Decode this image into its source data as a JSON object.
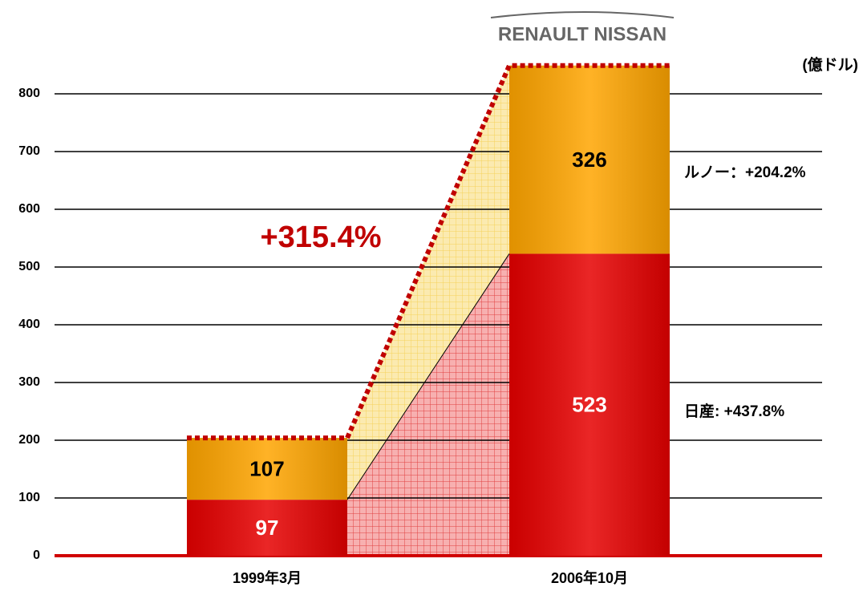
{
  "chart_data": {
    "type": "bar",
    "stacked": true,
    "logo": "RENAULT NISSAN",
    "unit_label": "(億ドル)",
    "categories": [
      "1999年3月",
      "2006年10月"
    ],
    "series": [
      {
        "name": "日産",
        "color": "#e60000",
        "values": [
          97,
          523
        ]
      },
      {
        "name": "ルノー",
        "color": "#ffa500",
        "values": [
          107,
          326
        ]
      }
    ],
    "annotations": [
      "+315.4%",
      "ルノー：+204.2%",
      "日産:  +437.8%"
    ],
    "ylim": [
      0,
      800
    ],
    "yticks": [
      0,
      100,
      200,
      300,
      400,
      500,
      600,
      700,
      800
    ],
    "grid": true
  }
}
